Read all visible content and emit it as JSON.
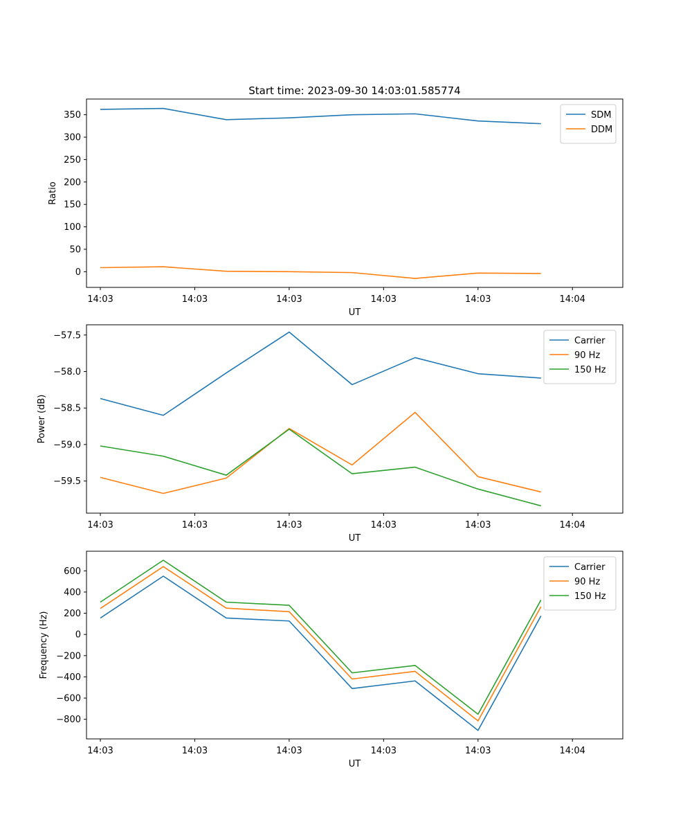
{
  "chart_data": [
    {
      "type": "line",
      "title": "Start time: 2023-09-30 14:03:01.585774",
      "xlabel": "UT",
      "ylabel": "Ratio",
      "x": [
        1,
        2,
        3,
        4,
        5,
        6,
        7,
        8
      ],
      "xlim": [
        0.78,
        9.3
      ],
      "x_ticks": [
        1,
        2.5,
        4,
        5.5,
        7,
        8.5
      ],
      "x_tick_labels": [
        "14:03",
        "14:03",
        "14:03",
        "14:03",
        "14:03",
        "14:04"
      ],
      "ylim": [
        -35,
        385
      ],
      "y_ticks": [
        0,
        50,
        100,
        150,
        200,
        250,
        300,
        350
      ],
      "y_tick_labels": [
        "0",
        "50",
        "100",
        "150",
        "200",
        "250",
        "300",
        "350"
      ],
      "grid": false,
      "legend": "top-right",
      "series": [
        {
          "name": "SDM",
          "color": "#1f77b4",
          "values": [
            362,
            364,
            339,
            343,
            350,
            352,
            336,
            330
          ]
        },
        {
          "name": "DDM",
          "color": "#ff7f0e",
          "values": [
            9,
            11,
            1,
            0,
            -2,
            -15,
            -3,
            -4
          ]
        }
      ]
    },
    {
      "type": "line",
      "title": "",
      "xlabel": "UT",
      "ylabel": "Power (dB)",
      "x": [
        1,
        2,
        3,
        4,
        5,
        6,
        7,
        8
      ],
      "xlim": [
        0.78,
        9.3
      ],
      "x_ticks": [
        1,
        2.5,
        4,
        5.5,
        7,
        8.5
      ],
      "x_tick_labels": [
        "14:03",
        "14:03",
        "14:03",
        "14:03",
        "14:03",
        "14:04"
      ],
      "ylim": [
        -59.94,
        -57.36
      ],
      "y_ticks": [
        -59.5,
        -59.0,
        -58.5,
        -58.0,
        -57.5
      ],
      "y_tick_labels": [
        "−59.5",
        "−59.0",
        "−58.5",
        "−58.0",
        "−57.5"
      ],
      "grid": false,
      "legend": "top-right",
      "series": [
        {
          "name": "Carrier",
          "color": "#1f77b4",
          "values": [
            -58.37,
            -58.6,
            -58.02,
            -57.46,
            -58.18,
            -57.81,
            -58.03,
            -58.09
          ]
        },
        {
          "name": "90 Hz",
          "color": "#ff7f0e",
          "values": [
            -59.45,
            -59.67,
            -59.46,
            -58.78,
            -59.28,
            -58.56,
            -59.44,
            -59.65
          ]
        },
        {
          "name": "150 Hz",
          "color": "#2ca02c",
          "values": [
            -59.02,
            -59.16,
            -59.42,
            -58.79,
            -59.4,
            -59.31,
            -59.61,
            -59.84
          ]
        }
      ]
    },
    {
      "type": "line",
      "title": "",
      "xlabel": "UT",
      "ylabel": "Frequency (Hz)",
      "x": [
        1,
        2,
        3,
        4,
        5,
        6,
        7,
        8
      ],
      "xlim": [
        0.78,
        9.3
      ],
      "x_ticks": [
        1,
        2.5,
        4,
        5.5,
        7,
        8.5
      ],
      "x_tick_labels": [
        "14:03",
        "14:03",
        "14:03",
        "14:03",
        "14:03",
        "14:04"
      ],
      "ylim": [
        -985,
        785
      ],
      "y_ticks": [
        -800,
        -600,
        -400,
        -200,
        0,
        200,
        400,
        600
      ],
      "y_tick_labels": [
        "−800",
        "−600",
        "−400",
        "−200",
        "0",
        "200",
        "400",
        "600"
      ],
      "grid": false,
      "legend": "top-right",
      "series": [
        {
          "name": "Carrier",
          "color": "#1f77b4",
          "values": [
            155,
            550,
            155,
            127,
            -510,
            -438,
            -905,
            175
          ]
        },
        {
          "name": "90 Hz",
          "color": "#ff7f0e",
          "values": [
            245,
            640,
            248,
            215,
            -420,
            -348,
            -815,
            262
          ]
        },
        {
          "name": "150 Hz",
          "color": "#2ca02c",
          "values": [
            305,
            700,
            305,
            275,
            -362,
            -292,
            -752,
            325
          ]
        }
      ]
    }
  ]
}
